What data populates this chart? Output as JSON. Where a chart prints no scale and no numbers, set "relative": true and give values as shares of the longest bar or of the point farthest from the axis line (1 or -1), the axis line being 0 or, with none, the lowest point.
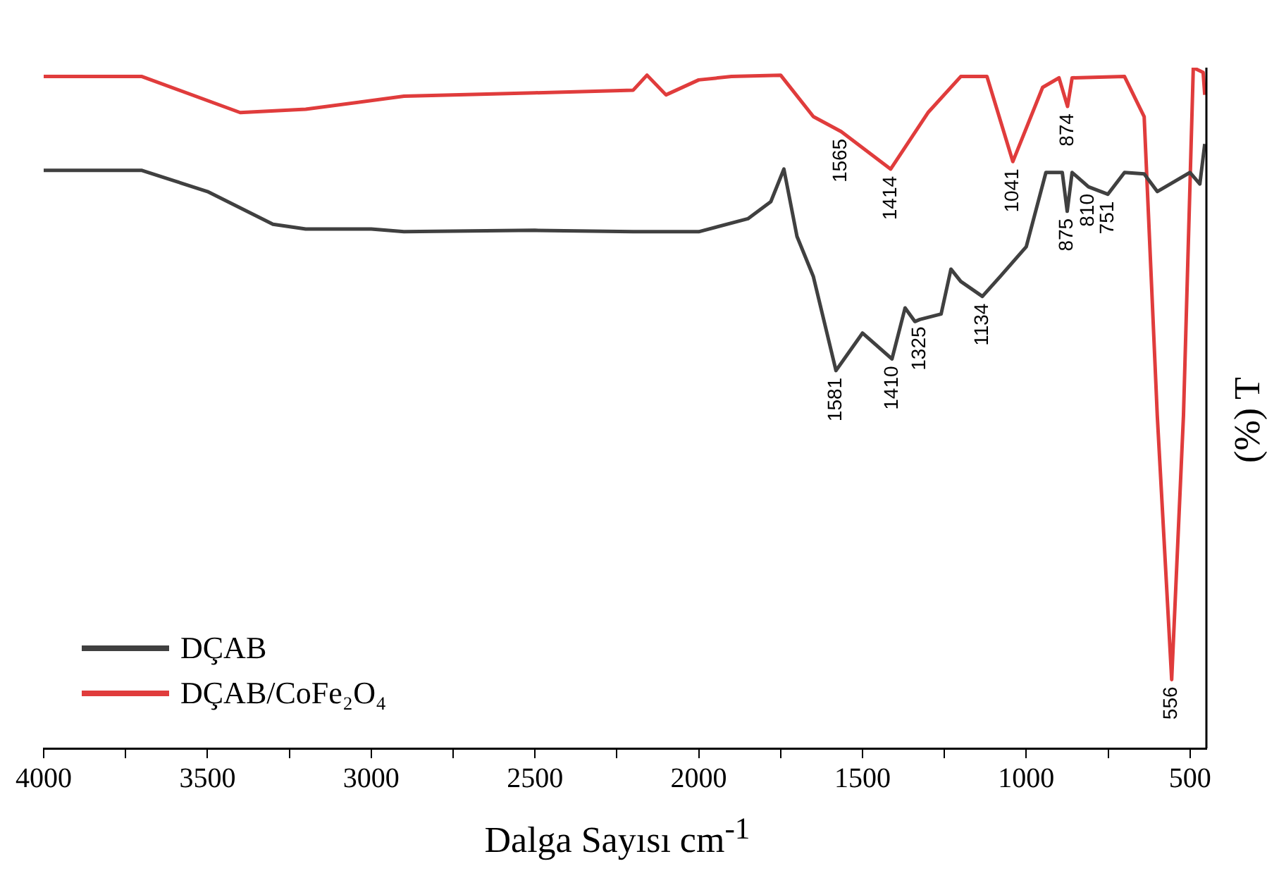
{
  "chart_data": {
    "type": "line",
    "xlabel": "Dalga Sayısı cm$^{-1}$",
    "ylabel": "(%) T",
    "relative": true,
    "legend": "bottom left",
    "grid": false,
    "xlim": [
      4000,
      450
    ],
    "xticks": [
      4000,
      {
        "value": 3750,
        "label": null
      },
      3500,
      {
        "value": 3250,
        "label": null
      },
      3000,
      {
        "value": 2750,
        "label": null
      },
      2500,
      {
        "value": 2250,
        "label": null
      },
      2000,
      {
        "value": 1750,
        "label": null
      },
      1500,
      {
        "value": 1250,
        "label": null
      },
      1000,
      {
        "value": 750,
        "label": null
      },
      500
    ],
    "series": [
      {
        "name": "DÇAB",
        "color": "#404040",
        "x": [
          4000,
          3700,
          3500,
          3300,
          3200,
          3000,
          2900,
          2500,
          2200,
          2000,
          1850,
          1780,
          1740,
          1700,
          1650,
          1581,
          1500,
          1410,
          1370,
          1340,
          1325,
          1260,
          1230,
          1200,
          1134,
          1080,
          1000,
          940,
          890,
          875,
          860,
          810,
          751,
          700,
          640,
          600,
          500,
          470,
          455
        ],
        "values": [
          0.849,
          0.849,
          0.818,
          0.77,
          0.763,
          0.763,
          0.759,
          0.761,
          0.759,
          0.759,
          0.778,
          0.803,
          0.851,
          0.752,
          0.693,
          0.555,
          0.61,
          0.572,
          0.647,
          0.627,
          0.63,
          0.638,
          0.704,
          0.686,
          0.664,
          0.693,
          0.737,
          0.846,
          0.846,
          0.789,
          0.846,
          0.825,
          0.814,
          0.846,
          0.844,
          0.818,
          0.846,
          0.829,
          0.888
        ]
      },
      {
        "name": "DÇAB/CoFe₂O₄",
        "color": "#e03c3c",
        "x": [
          4000,
          3700,
          3400,
          3200,
          2900,
          2500,
          2200,
          2158,
          2100,
          2000,
          1900,
          1750,
          1650,
          1565,
          1414,
          1300,
          1200,
          1120,
          1041,
          950,
          900,
          874,
          860,
          700,
          640,
          600,
          556,
          520,
          490,
          460,
          455
        ],
        "values": [
          0.987,
          0.987,
          0.934,
          0.939,
          0.958,
          0.963,
          0.967,
          0.989,
          0.96,
          0.982,
          0.987,
          0.989,
          0.928,
          0.906,
          0.851,
          0.934,
          0.987,
          0.987,
          0.862,
          0.971,
          0.985,
          0.943,
          0.985,
          0.987,
          0.928,
          0.489,
          0.101,
          0.489,
          1.0,
          0.993,
          0.96
        ]
      }
    ],
    "annotations": [
      {
        "text": "1565",
        "x": 1565,
        "y": 0.906
      },
      {
        "text": "1414",
        "x": 1414,
        "y": 0.851
      },
      {
        "text": "1041",
        "x": 1041,
        "y": 0.862
      },
      {
        "text": "874",
        "x": 874,
        "y": 0.943
      },
      {
        "text": "556",
        "x": 556,
        "y": 0.101
      },
      {
        "text": "1581",
        "x": 1581,
        "y": 0.555
      },
      {
        "text": "1410",
        "x": 1410,
        "y": 0.572
      },
      {
        "text": "1325",
        "x": 1325,
        "y": 0.63
      },
      {
        "text": "1134",
        "x": 1134,
        "y": 0.664
      },
      {
        "text": "875",
        "x": 875,
        "y": 0.789
      },
      {
        "text": "810",
        "x": 810,
        "y": 0.825
      },
      {
        "text": "751",
        "x": 751,
        "y": 0.814
      }
    ]
  }
}
